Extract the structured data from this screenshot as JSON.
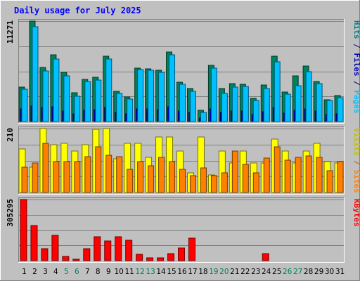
{
  "chart_data": {
    "type": "bar",
    "title": "Daily usage for July 2025",
    "categories": [
      "1",
      "2",
      "3",
      "4",
      "5",
      "6",
      "7",
      "8",
      "9",
      "10",
      "11",
      "12",
      "13",
      "14",
      "15",
      "16",
      "17",
      "18",
      "19",
      "20",
      "21",
      "22",
      "23",
      "24",
      "25",
      "26",
      "27",
      "28",
      "29",
      "30",
      "31"
    ],
    "weekend_days": [
      "5",
      "6",
      "12",
      "13",
      "19",
      "20",
      "26",
      "27"
    ],
    "panels": [
      {
        "id": "hits",
        "axis_max_label": "11271",
        "ymax": 11271,
        "legend": [
          {
            "text": "Hits",
            "color": "#008080"
          },
          {
            "text": " / ",
            "color": "#000080"
          },
          {
            "text": "Files",
            "color": "#0000C0"
          },
          {
            "text": " / ",
            "color": "#000080"
          },
          {
            "text": "Pages",
            "color": "#00C0FF"
          }
        ],
        "series": [
          {
            "name": "Hits",
            "color": "#00805C",
            "values": [
              3850,
              11271,
              6080,
              7520,
              5550,
              3200,
              4720,
              5000,
              7340,
              3420,
              2750,
              5990,
              5950,
              5750,
              7800,
              4400,
              3680,
              1250,
              6280,
              3740,
              4260,
              4200,
              2620,
              4060,
              7300,
              3330,
              5120,
              6190,
              4520,
              2460,
              2880
            ]
          },
          {
            "name": "Files",
            "color": "#0000C0",
            "values": [
              1400,
              1700,
              1550,
              1650,
              1200,
              900,
              1300,
              1350,
              1600,
              1000,
              900,
              1450,
              1400,
              1350,
              1650,
              1150,
              1000,
              400,
              1450,
              1050,
              1150,
              1150,
              800,
              1100,
              1550,
              950,
              1250,
              1400,
              1150,
              750,
              850
            ]
          },
          {
            "name": "Pages",
            "color": "#00C0FF",
            "values": [
              3650,
              10650,
              5690,
              7050,
              5150,
              2850,
              4460,
              4680,
              6980,
              3180,
              2550,
              5800,
              5750,
              5480,
              7450,
              4180,
              3380,
              1050,
              5980,
              3160,
              3900,
              3970,
              2350,
              3740,
              6680,
              3050,
              4000,
              5620,
              4260,
              2330,
              2680
            ]
          }
        ]
      },
      {
        "id": "visits",
        "axis_max_label": "210",
        "ymax": 210,
        "legend": [
          {
            "text": "Visits",
            "color": "#C0C000"
          },
          {
            "text": " / ",
            "color": "#C06000"
          },
          {
            "text": "Sites",
            "color": "#FF8000"
          }
        ],
        "series": [
          {
            "name": "Visits",
            "color": "#FFFF00",
            "values": [
              142,
              82,
              210,
              157,
              162,
              135,
              157,
              207,
              210,
              110,
              162,
              162,
              115,
              182,
              182,
              135,
              65,
              182,
              58,
              137,
              97,
              135,
              97,
              97,
              175,
              137,
              97,
              137,
              162,
              102,
              97
            ]
          },
          {
            "name": "Sites",
            "color": "#FF8000",
            "values": [
              82,
              97,
              162,
              102,
              102,
              102,
              117,
              150,
              122,
              117,
              75,
              102,
              87,
              115,
              102,
              75,
              55,
              80,
              56,
              65,
              137,
              92,
              65,
              112,
              150,
              106,
              115,
              120,
              115,
              72,
              102
            ]
          }
        ]
      },
      {
        "id": "kbytes",
        "axis_max_label": "305295",
        "ymax": 305295,
        "legend": [
          {
            "text": "KBytes",
            "color": "#FF0000"
          }
        ],
        "series": [
          {
            "name": "KBytes",
            "color": "#FF0000",
            "values": [
              305295,
              176000,
              58000,
              125000,
              22000,
              8000,
              58000,
              118000,
              100000,
              118000,
              102000,
              32000,
              14000,
              14000,
              34000,
              64000,
              114000,
              0,
              0,
              0,
              0,
              0,
              0,
              36000,
              0,
              0,
              0,
              0,
              0,
              0,
              0
            ]
          }
        ]
      }
    ]
  }
}
